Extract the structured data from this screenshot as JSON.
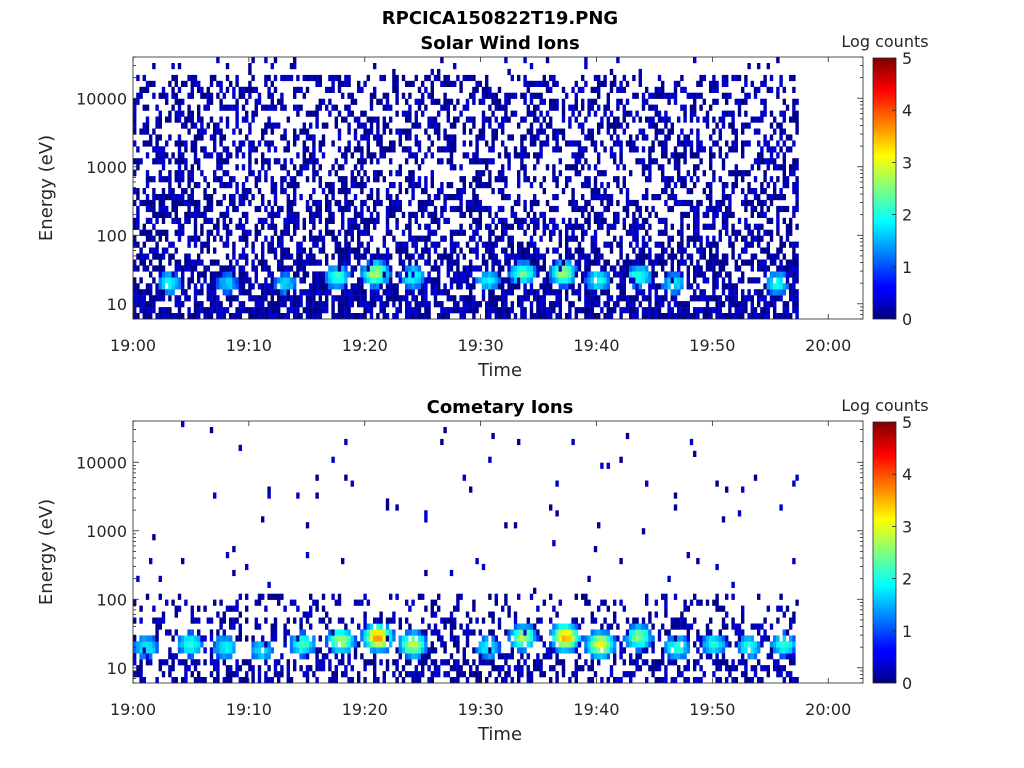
{
  "figure": {
    "title": "RPCICA150822T19.PNG"
  },
  "chart_data": [
    {
      "type": "heatmap",
      "title": "Solar Wind Ions",
      "xlabel": "Time",
      "ylabel": "Energy (eV)",
      "x_tick_labels": [
        "19:00",
        "19:10",
        "19:20",
        "19:30",
        "19:40",
        "19:50",
        "20:00"
      ],
      "x_tick_minutes": [
        0,
        10,
        20,
        30,
        40,
        50,
        60
      ],
      "xlim_minutes": [
        0,
        63
      ],
      "data_extent_minutes": [
        0,
        57.5
      ],
      "y_scale": "log",
      "y_tick_labels": [
        "10",
        "100",
        "1000",
        "10000"
      ],
      "y_tick_values": [
        10,
        100,
        1000,
        10000
      ],
      "ylim": [
        6,
        40000
      ],
      "colorbar": {
        "label": "Log counts",
        "ticks": [
          "0",
          "1",
          "2",
          "3",
          "4",
          "5"
        ],
        "range": [
          0,
          5
        ],
        "colormap": "jet"
      },
      "hot_spots": [
        {
          "minute": 3.0,
          "energy": 20,
          "level": 1.8
        },
        {
          "minute": 8.0,
          "energy": 20,
          "level": 1.5
        },
        {
          "minute": 13.0,
          "energy": 20,
          "level": 1.6
        },
        {
          "minute": 17.5,
          "energy": 25,
          "level": 2.0
        },
        {
          "minute": 20.8,
          "energy": 28,
          "level": 2.6
        },
        {
          "minute": 24.0,
          "energy": 25,
          "level": 1.9
        },
        {
          "minute": 30.5,
          "energy": 22,
          "level": 1.7
        },
        {
          "minute": 33.5,
          "energy": 28,
          "level": 2.2
        },
        {
          "minute": 37.0,
          "energy": 28,
          "level": 2.5
        },
        {
          "minute": 40.0,
          "energy": 22,
          "level": 1.9
        },
        {
          "minute": 43.5,
          "energy": 25,
          "level": 2.0
        },
        {
          "minute": 46.5,
          "energy": 20,
          "level": 1.7
        },
        {
          "minute": 55.5,
          "energy": 20,
          "level": 1.8
        }
      ]
    },
    {
      "type": "heatmap",
      "title": "Cometary Ions",
      "xlabel": "Time",
      "ylabel": "Energy (eV)",
      "x_tick_labels": [
        "19:00",
        "19:10",
        "19:20",
        "19:30",
        "19:40",
        "19:50",
        "20:00"
      ],
      "x_tick_minutes": [
        0,
        10,
        20,
        30,
        40,
        50,
        60
      ],
      "xlim_minutes": [
        0,
        63
      ],
      "data_extent_minutes": [
        0,
        57.5
      ],
      "y_scale": "log",
      "y_tick_labels": [
        "10",
        "100",
        "1000",
        "10000"
      ],
      "y_tick_values": [
        10,
        100,
        1000,
        10000
      ],
      "ylim": [
        6,
        40000
      ],
      "colorbar": {
        "label": "Log counts",
        "ticks": [
          "0",
          "1",
          "2",
          "3",
          "4",
          "5"
        ],
        "range": [
          0,
          5
        ],
        "colormap": "jet"
      },
      "hot_spots": [
        {
          "minute": 1.0,
          "energy": 20,
          "level": 1.8
        },
        {
          "minute": 4.8,
          "energy": 22,
          "level": 2.0
        },
        {
          "minute": 7.8,
          "energy": 20,
          "level": 1.8
        },
        {
          "minute": 11.0,
          "energy": 18,
          "level": 1.7
        },
        {
          "minute": 14.5,
          "energy": 22,
          "level": 2.1
        },
        {
          "minute": 17.8,
          "energy": 25,
          "level": 2.6
        },
        {
          "minute": 21.0,
          "energy": 28,
          "level": 3.5
        },
        {
          "minute": 24.0,
          "energy": 22,
          "level": 2.7
        },
        {
          "minute": 30.5,
          "energy": 20,
          "level": 1.8
        },
        {
          "minute": 33.5,
          "energy": 28,
          "level": 2.6
        },
        {
          "minute": 37.2,
          "energy": 28,
          "level": 3.4
        },
        {
          "minute": 40.2,
          "energy": 22,
          "level": 3.0
        },
        {
          "minute": 43.5,
          "energy": 28,
          "level": 2.4
        },
        {
          "minute": 46.8,
          "energy": 20,
          "level": 2.0
        },
        {
          "minute": 50.0,
          "energy": 22,
          "level": 1.9
        },
        {
          "minute": 53.0,
          "energy": 20,
          "level": 1.9
        },
        {
          "minute": 56.0,
          "energy": 22,
          "level": 2.0
        }
      ]
    }
  ]
}
